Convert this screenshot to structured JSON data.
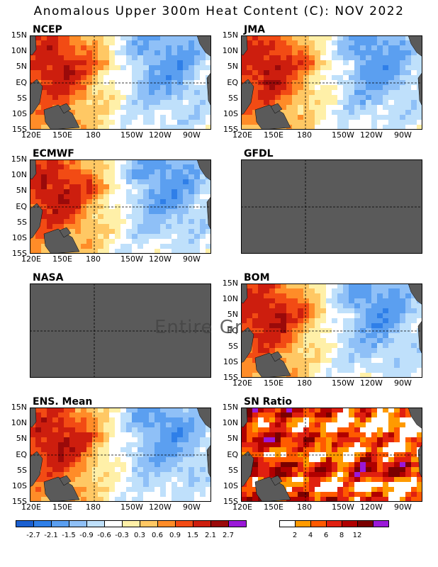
{
  "title": "Anomalous Upper 300m Heat Content (C): NOV 2022",
  "lat_labels": [
    "15N",
    "10N",
    "5N",
    "EQ",
    "5S",
    "10S",
    "15S"
  ],
  "lon_labels": [
    "120E",
    "150E",
    "180",
    "150W",
    "120W",
    "90W"
  ],
  "panels": [
    {
      "id": "ncep",
      "label": "NCEP",
      "status": "data",
      "show_lon": true,
      "theme": "west-warm"
    },
    {
      "id": "jma",
      "label": "JMA",
      "status": "data",
      "show_lon": true,
      "theme": "west-warm"
    },
    {
      "id": "ecmwf",
      "label": "ECMWF",
      "status": "data",
      "show_lon": true,
      "theme": "west-warm"
    },
    {
      "id": "gfdl",
      "label": "GFDL",
      "status": "no-data",
      "show_lon": false
    },
    {
      "id": "nasa",
      "label": "NASA",
      "status": "no-data",
      "show_lon": false
    },
    {
      "id": "bom",
      "label": "BOM",
      "status": "data",
      "show_lon": true,
      "theme": "west-warm"
    },
    {
      "id": "ens",
      "label": "ENS. Mean",
      "status": "data",
      "show_lon": true,
      "theme": "west-warm"
    },
    {
      "id": "sn",
      "label": "SN Ratio",
      "status": "data",
      "show_lon": true,
      "theme": "sn"
    }
  ],
  "overlay_text": "Entire Gr",
  "colorbar_anomaly": {
    "colors": [
      "#1a5fd0",
      "#2f7fe8",
      "#5b9ff0",
      "#8fc0f7",
      "#bfe0fb",
      "#ffffff",
      "#fff0a8",
      "#ffc864",
      "#ff8c28",
      "#f24b14",
      "#cd1e0e",
      "#9a0a0a",
      "#9a18d8"
    ],
    "ticks": [
      "-2.7",
      "-2.1",
      "-1.5",
      "-0.9",
      "-0.6",
      "-0.3",
      "0.3",
      "0.6",
      "0.9",
      "1.5",
      "2.1",
      "2.7"
    ]
  },
  "colorbar_sn": {
    "colors": [
      "#ffffff",
      "#ff9a00",
      "#ff5a00",
      "#e02010",
      "#b00000",
      "#7a0000",
      "#9a18d8"
    ],
    "ticks": [
      "2",
      "4",
      "6",
      "8",
      "12"
    ]
  },
  "colors": {
    "land": "#5a5a5a",
    "nodata": "#5a5a5a"
  }
}
